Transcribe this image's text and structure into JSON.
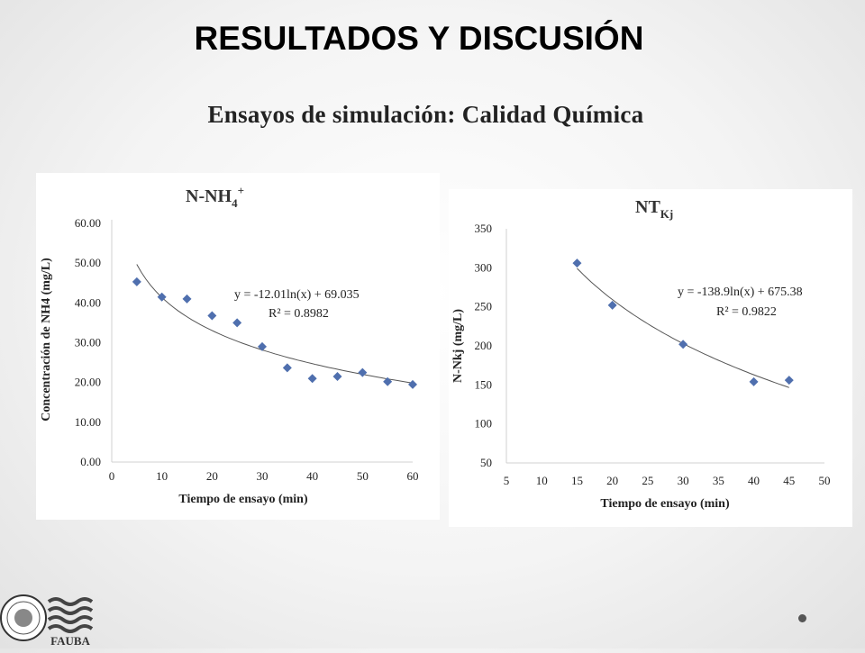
{
  "slide": {
    "title": "RESULTADOS Y DISCUSIÓN",
    "subtitle": "Ensayos de simulación: Calidad Química",
    "logo_text": "FAUBA"
  },
  "colors": {
    "marker": "#4f6fae",
    "trend": "#555555"
  },
  "chart_data": [
    {
      "type": "scatter",
      "title": "N-NH4+",
      "title_main": "N-NH",
      "title_sub": "4",
      "title_sup": "+",
      "xlabel": "Tiempo de ensayo (min)",
      "ylabel": "Concentración de NH4 (mg/L)",
      "xlim": [
        0,
        60
      ],
      "ylim": [
        0,
        60
      ],
      "xticks": [
        "0",
        "10",
        "20",
        "30",
        "40",
        "50",
        "60"
      ],
      "yticks": [
        "0.00",
        "10.00",
        "20.00",
        "30.00",
        "40.00",
        "50.00",
        "60.00"
      ],
      "x": [
        5,
        10,
        15,
        20,
        25,
        30,
        35,
        40,
        45,
        50,
        55,
        60
      ],
      "y": [
        45.3,
        41.5,
        41.0,
        36.8,
        35.0,
        29.0,
        23.7,
        21.0,
        21.5,
        22.5,
        20.2,
        19.5
      ],
      "trendline": {
        "type": "log",
        "a": -12.01,
        "b": 69.035,
        "x_from": 5,
        "x_to": 60
      },
      "equation": "y = -12.01ln(x) + 69.035",
      "r2": "R² = 0.8982",
      "grid": false
    },
    {
      "type": "scatter",
      "title": "NTKj",
      "title_main": "NT",
      "title_sub": "Kj",
      "xlabel": "Tiempo de ensayo (min)",
      "ylabel": "N-Nkj (mg/L)",
      "xlim": [
        5,
        50
      ],
      "ylim": [
        50,
        350
      ],
      "xticks": [
        "5",
        "10",
        "15",
        "20",
        "25",
        "30",
        "35",
        "40",
        "45",
        "50"
      ],
      "yticks": [
        "50",
        "100",
        "150",
        "200",
        "250",
        "300",
        "350"
      ],
      "x": [
        15,
        20,
        30,
        40,
        45
      ],
      "y": [
        306,
        252,
        202,
        154,
        156
      ],
      "trendline": {
        "type": "log",
        "a": -138.9,
        "b": 675.38,
        "x_from": 15,
        "x_to": 45
      },
      "equation": "y = -138.9ln(x) + 675.38",
      "r2": "R² = 0.9822",
      "grid": false
    }
  ]
}
